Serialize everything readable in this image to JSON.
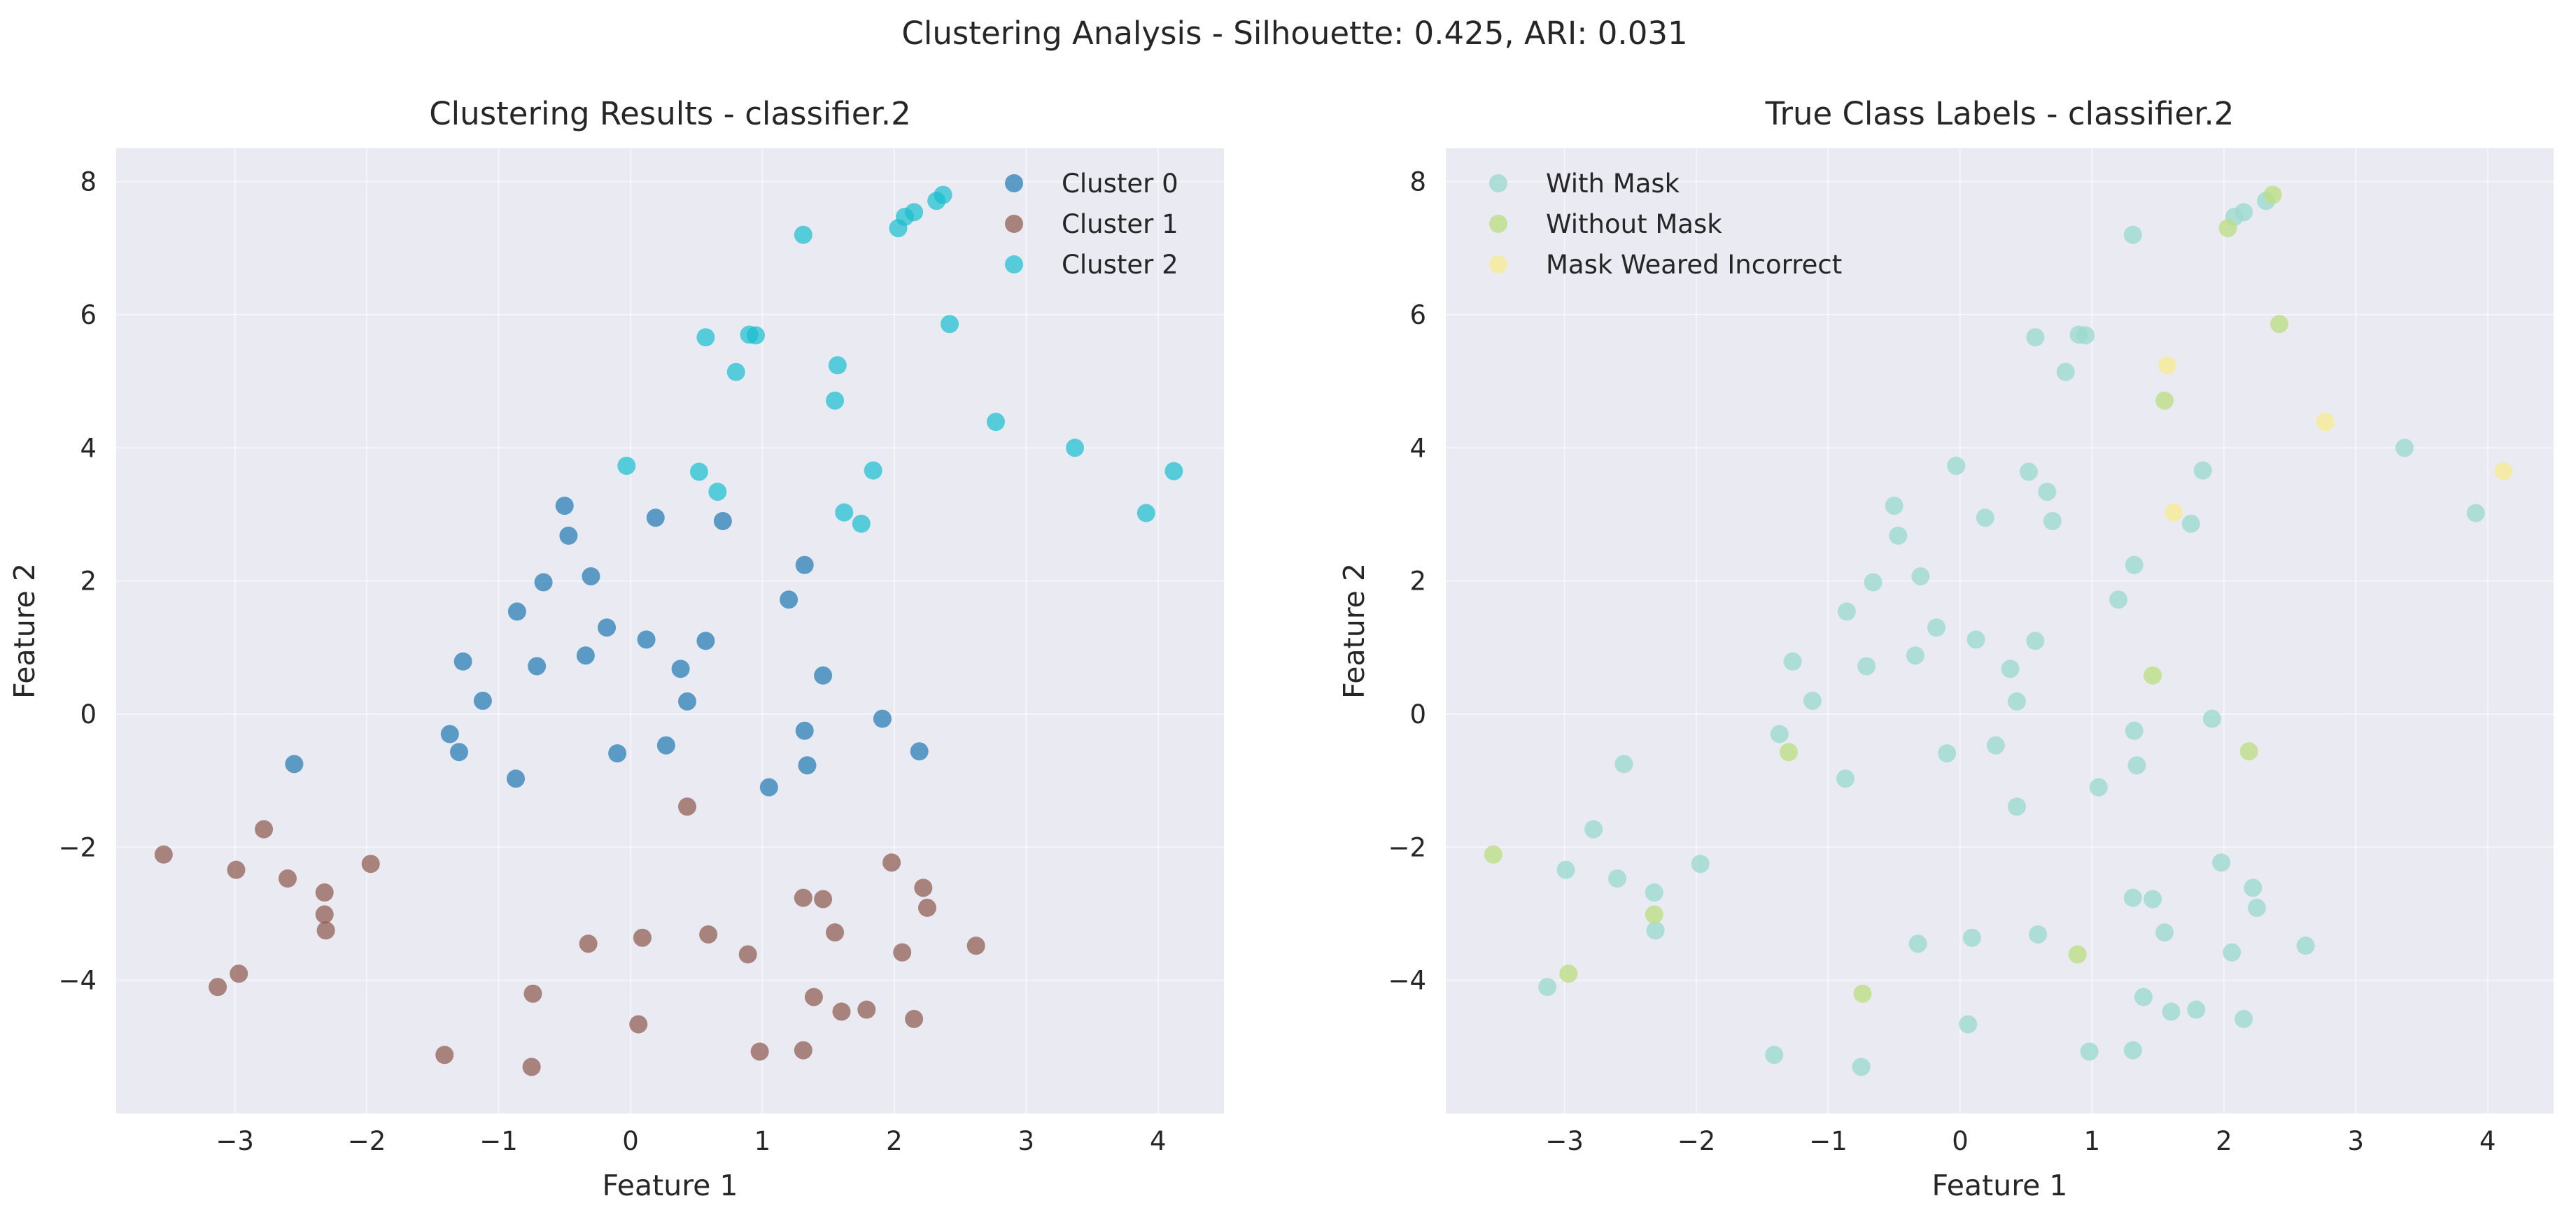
{
  "figure": {
    "suptitle": "Clustering Analysis - Silhouette: 0.425, ARI: 0.031"
  },
  "chart_data": [
    {
      "type": "scatter",
      "title": "Clustering Results - classifier.2",
      "xlabel": "Feature 1",
      "ylabel": "Feature 2",
      "xlim": [
        -3.9,
        4.5
      ],
      "ylim": [
        -6.0,
        8.5
      ],
      "xticks": [
        -3,
        -2,
        -1,
        0,
        1,
        2,
        3,
        4
      ],
      "yticks": [
        -4,
        -2,
        0,
        2,
        4,
        6,
        8
      ],
      "grid": true,
      "legend_position": "top-right",
      "series": [
        {
          "name": "Cluster 0",
          "color": "#1f77b4",
          "points": [
            [
              -2.55,
              -0.75
            ],
            [
              -1.37,
              -0.3
            ],
            [
              -1.3,
              -0.57
            ],
            [
              -1.27,
              0.79
            ],
            [
              -1.12,
              0.2
            ],
            [
              -0.87,
              -0.97
            ],
            [
              -0.86,
              1.54
            ],
            [
              -0.71,
              0.72
            ],
            [
              -0.66,
              1.98
            ],
            [
              -0.5,
              3.13
            ],
            [
              -0.47,
              2.68
            ],
            [
              -0.34,
              0.88
            ],
            [
              -0.3,
              2.07
            ],
            [
              -0.18,
              1.3
            ],
            [
              -0.1,
              -0.59
            ],
            [
              0.12,
              1.12
            ],
            [
              0.19,
              2.95
            ],
            [
              0.27,
              -0.47
            ],
            [
              0.38,
              0.68
            ],
            [
              0.43,
              0.19
            ],
            [
              0.57,
              1.1
            ],
            [
              0.7,
              2.9
            ],
            [
              1.05,
              -1.1
            ],
            [
              1.2,
              1.72
            ],
            [
              1.32,
              2.24
            ],
            [
              1.32,
              -0.25
            ],
            [
              1.34,
              -0.77
            ],
            [
              1.46,
              0.58
            ],
            [
              1.91,
              -0.07
            ],
            [
              2.19,
              -0.56
            ]
          ]
        },
        {
          "name": "Cluster 1",
          "color": "#8c564b",
          "points": [
            [
              -3.54,
              -2.11
            ],
            [
              -3.13,
              -4.1
            ],
            [
              -2.99,
              -2.34
            ],
            [
              -2.97,
              -3.9
            ],
            [
              -2.78,
              -1.73
            ],
            [
              -2.6,
              -2.47
            ],
            [
              -2.32,
              -2.68
            ],
            [
              -2.32,
              -3.01
            ],
            [
              -2.31,
              -3.25
            ],
            [
              -1.97,
              -2.25
            ],
            [
              -1.41,
              -5.12
            ],
            [
              -0.75,
              -5.3
            ],
            [
              -0.74,
              -4.2
            ],
            [
              -0.32,
              -3.45
            ],
            [
              0.06,
              -4.66
            ],
            [
              0.09,
              -3.36
            ],
            [
              0.43,
              -1.39
            ],
            [
              0.59,
              -3.31
            ],
            [
              0.89,
              -3.61
            ],
            [
              0.98,
              -5.07
            ],
            [
              1.31,
              -2.76
            ],
            [
              1.31,
              -5.05
            ],
            [
              1.39,
              -4.25
            ],
            [
              1.46,
              -2.78
            ],
            [
              1.55,
              -3.28
            ],
            [
              1.6,
              -4.47
            ],
            [
              1.79,
              -4.44
            ],
            [
              1.98,
              -2.23
            ],
            [
              2.06,
              -3.58
            ],
            [
              2.15,
              -4.58
            ],
            [
              2.22,
              -2.61
            ],
            [
              2.25,
              -2.91
            ],
            [
              2.62,
              -3.48
            ]
          ]
        },
        {
          "name": "Cluster 2",
          "color": "#17becf",
          "points": [
            [
              -0.03,
              3.73
            ],
            [
              0.52,
              3.64
            ],
            [
              0.57,
              5.66
            ],
            [
              0.66,
              3.34
            ],
            [
              0.8,
              5.14
            ],
            [
              0.9,
              5.7
            ],
            [
              0.95,
              5.69
            ],
            [
              1.31,
              7.2
            ],
            [
              1.55,
              4.71
            ],
            [
              1.57,
              5.24
            ],
            [
              1.62,
              3.03
            ],
            [
              1.75,
              2.86
            ],
            [
              1.84,
              3.66
            ],
            [
              2.03,
              7.3
            ],
            [
              2.08,
              7.47
            ],
            [
              2.15,
              7.54
            ],
            [
              2.32,
              7.71
            ],
            [
              2.37,
              7.8
            ],
            [
              2.42,
              5.86
            ],
            [
              2.77,
              4.39
            ],
            [
              3.37,
              4.0
            ],
            [
              3.91,
              3.02
            ],
            [
              4.12,
              3.65
            ]
          ]
        }
      ]
    },
    {
      "type": "scatter",
      "title": "True Class Labels - classifier.2",
      "xlabel": "Feature 1",
      "ylabel": "Feature 2",
      "xlim": [
        -3.9,
        4.5
      ],
      "ylim": [
        -6.0,
        8.5
      ],
      "xticks": [
        -3,
        -2,
        -1,
        0,
        1,
        2,
        3,
        4
      ],
      "yticks": [
        -4,
        -2,
        0,
        2,
        4,
        6,
        8
      ],
      "grid": true,
      "legend_position": "top-left",
      "series": [
        {
          "name": "With Mask",
          "color": "#9ddad0",
          "points": [
            [
              -2.55,
              -0.75
            ],
            [
              -1.37,
              -0.3
            ],
            [
              -1.27,
              0.79
            ],
            [
              -1.12,
              0.2
            ],
            [
              -0.87,
              -0.97
            ],
            [
              -0.86,
              1.54
            ],
            [
              -0.71,
              0.72
            ],
            [
              -0.66,
              1.98
            ],
            [
              -0.5,
              3.13
            ],
            [
              -0.47,
              2.68
            ],
            [
              -0.34,
              0.88
            ],
            [
              -0.3,
              2.07
            ],
            [
              -0.18,
              1.3
            ],
            [
              -0.1,
              -0.59
            ],
            [
              0.12,
              1.12
            ],
            [
              0.19,
              2.95
            ],
            [
              0.27,
              -0.47
            ],
            [
              0.38,
              0.68
            ],
            [
              0.43,
              0.19
            ],
            [
              0.57,
              1.1
            ],
            [
              0.7,
              2.9
            ],
            [
              1.05,
              -1.1
            ],
            [
              1.2,
              1.72
            ],
            [
              1.32,
              2.24
            ],
            [
              1.32,
              -0.25
            ],
            [
              1.34,
              -0.77
            ],
            [
              1.91,
              -0.07
            ],
            [
              -3.13,
              -4.1
            ],
            [
              -2.99,
              -2.34
            ],
            [
              -2.78,
              -1.73
            ],
            [
              -2.6,
              -2.47
            ],
            [
              -2.32,
              -2.68
            ],
            [
              -2.31,
              -3.25
            ],
            [
              -1.97,
              -2.25
            ],
            [
              -1.41,
              -5.12
            ],
            [
              -0.75,
              -5.3
            ],
            [
              -0.32,
              -3.45
            ],
            [
              0.06,
              -4.66
            ],
            [
              0.09,
              -3.36
            ],
            [
              0.43,
              -1.39
            ],
            [
              0.59,
              -3.31
            ],
            [
              0.98,
              -5.07
            ],
            [
              1.31,
              -2.76
            ],
            [
              1.31,
              -5.05
            ],
            [
              1.39,
              -4.25
            ],
            [
              1.46,
              -2.78
            ],
            [
              1.55,
              -3.28
            ],
            [
              1.6,
              -4.47
            ],
            [
              1.79,
              -4.44
            ],
            [
              1.98,
              -2.23
            ],
            [
              2.06,
              -3.58
            ],
            [
              2.15,
              -4.58
            ],
            [
              2.22,
              -2.61
            ],
            [
              2.25,
              -2.91
            ],
            [
              2.62,
              -3.48
            ],
            [
              -0.03,
              3.73
            ],
            [
              0.52,
              3.64
            ],
            [
              0.57,
              5.66
            ],
            [
              0.66,
              3.34
            ],
            [
              0.8,
              5.14
            ],
            [
              0.9,
              5.7
            ],
            [
              0.95,
              5.69
            ],
            [
              1.31,
              7.2
            ],
            [
              1.75,
              2.86
            ],
            [
              1.84,
              3.66
            ],
            [
              2.08,
              7.47
            ],
            [
              2.15,
              7.54
            ],
            [
              2.32,
              7.71
            ],
            [
              3.37,
              4.0
            ],
            [
              3.91,
              3.02
            ]
          ]
        },
        {
          "name": "Without Mask",
          "color": "#bcdf86",
          "points": [
            [
              -3.54,
              -2.11
            ],
            [
              -2.97,
              -3.9
            ],
            [
              -2.32,
              -3.01
            ],
            [
              -1.3,
              -0.57
            ],
            [
              -0.74,
              -4.2
            ],
            [
              0.89,
              -3.61
            ],
            [
              1.46,
              0.58
            ],
            [
              1.55,
              4.71
            ],
            [
              2.03,
              7.3
            ],
            [
              2.19,
              -0.56
            ],
            [
              2.37,
              7.8
            ],
            [
              2.42,
              5.86
            ]
          ]
        },
        {
          "name": "Mask Weared Incorrect",
          "color": "#f7eb96",
          "points": [
            [
              1.57,
              5.24
            ],
            [
              1.62,
              3.03
            ],
            [
              2.77,
              4.39
            ],
            [
              4.12,
              3.65
            ]
          ]
        }
      ]
    }
  ]
}
